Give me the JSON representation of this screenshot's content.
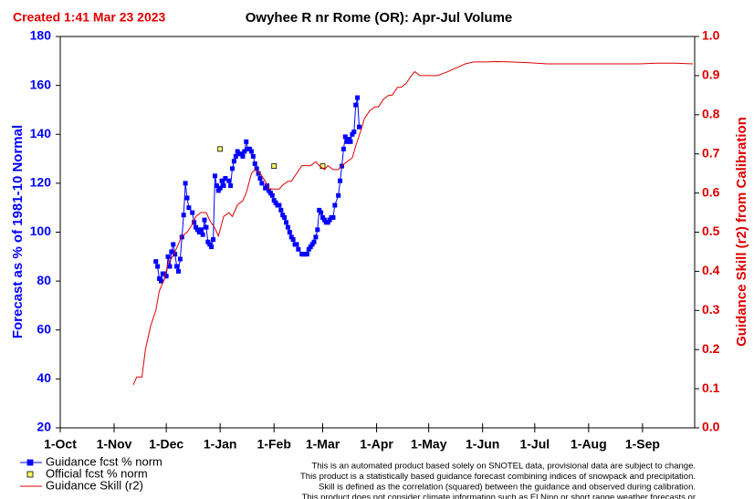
{
  "chart_data": {
    "type": "line",
    "created": "Created 1:41 Mar 23 2023",
    "title": "Owyhee R nr Rome (OR): Apr-Jul Volume",
    "y_label": "Forecast as % of 1981-10 Normal",
    "y2_label": "Guidance Skill (r2) from Calibration",
    "xlim": [
      0,
      365
    ],
    "xticks": [
      {
        "value": 0,
        "label": "1-Oct"
      },
      {
        "value": 31,
        "label": "1-Nov"
      },
      {
        "value": 61,
        "label": "1-Dec"
      },
      {
        "value": 92,
        "label": "1-Jan"
      },
      {
        "value": 123,
        "label": "1-Feb"
      },
      {
        "value": 151,
        "label": "1-Mar"
      },
      {
        "value": 182,
        "label": "1-Apr"
      },
      {
        "value": 212,
        "label": "1-May"
      },
      {
        "value": 243,
        "label": "1-Jun"
      },
      {
        "value": 273,
        "label": "1-Jul"
      },
      {
        "value": 304,
        "label": "1-Aug"
      },
      {
        "value": 335,
        "label": "1-Sep"
      }
    ],
    "ylim": [
      20,
      180
    ],
    "yticks": [
      20,
      40,
      60,
      80,
      100,
      120,
      140,
      160,
      180
    ],
    "y2lim": [
      0,
      1
    ],
    "y2ticks": [
      {
        "value": 0,
        "label": "0.0"
      },
      0.1,
      0.2,
      0.3,
      0.4,
      0.5,
      0.6,
      0.7,
      0.8,
      0.9,
      {
        "value": 1,
        "label": "1.0"
      }
    ],
    "grid": false,
    "series": [
      {
        "name": "Guidance fcst % norm",
        "color": "#0000ff",
        "marker": "square",
        "x": [
          55,
          56,
          57,
          58,
          59,
          60,
          61,
          62,
          63,
          64,
          65,
          66,
          67,
          68,
          69,
          70,
          71,
          72,
          73,
          74,
          76,
          77,
          78,
          79,
          80,
          81,
          82,
          83,
          84,
          85,
          86,
          87,
          88,
          89,
          90,
          91,
          92,
          93,
          94,
          95,
          97,
          98,
          99,
          100,
          101,
          102,
          103,
          104,
          105,
          106,
          107,
          108,
          109,
          110,
          111,
          112,
          113,
          114,
          115,
          116,
          118,
          119,
          120,
          121,
          122,
          123,
          124,
          125,
          126,
          127,
          128,
          129,
          130,
          131,
          132,
          133,
          134,
          135,
          136,
          137,
          139,
          140,
          141,
          142,
          143,
          144,
          145,
          146,
          147,
          148,
          149,
          150,
          151,
          152,
          153,
          154,
          155,
          156,
          157,
          158,
          160,
          161,
          162,
          163,
          164,
          165,
          166,
          167,
          168,
          169,
          170,
          171,
          172
        ],
        "values": [
          88,
          86,
          81,
          80,
          83,
          83,
          82,
          90,
          86,
          92,
          95,
          91,
          86,
          84,
          89,
          98,
          107,
          120,
          114,
          110,
          108,
          104,
          102,
          101,
          100,
          101,
          99,
          105,
          102,
          96,
          95,
          94,
          97,
          123,
          119,
          117,
          118,
          121,
          119,
          122,
          121,
          119,
          126,
          129,
          131,
          133,
          132,
          132,
          131,
          133,
          137,
          134,
          134,
          133,
          131,
          128,
          126,
          124,
          122,
          120,
          118,
          119,
          117,
          116,
          115,
          113,
          112,
          111,
          111,
          109,
          107,
          106,
          104,
          102,
          100,
          98,
          97,
          95,
          95,
          93,
          91,
          91,
          91,
          91,
          93,
          94,
          95,
          96,
          98,
          101,
          109,
          108,
          106,
          105,
          104,
          104,
          105,
          106,
          106,
          111,
          115,
          121,
          127,
          134,
          139,
          137,
          138,
          137,
          140,
          141,
          152,
          155,
          143
        ]
      },
      {
        "name": "Official fcst % norm",
        "color": "#ffff66",
        "marker": "square",
        "x": [
          92,
          123,
          151
        ],
        "values": [
          134,
          127,
          127
        ]
      },
      {
        "name": "Guidance Skill (r2)",
        "color": "#dd0000",
        "axis": "y2",
        "x": [
          42,
          44,
          47,
          49,
          52,
          55,
          57,
          60,
          62,
          65,
          68,
          70,
          73,
          76,
          78,
          81,
          84,
          86,
          89,
          91,
          94,
          97,
          99,
          102,
          105,
          107,
          110,
          112,
          115,
          118,
          120,
          123,
          126,
          128,
          131,
          133,
          136,
          139,
          141,
          144,
          147,
          149,
          152,
          154,
          157,
          160,
          162,
          165,
          168,
          170,
          173,
          175,
          178,
          181,
          183,
          186,
          189,
          191,
          194,
          196,
          199,
          202,
          204,
          207,
          212,
          217,
          223,
          228,
          233,
          238,
          244,
          252,
          259,
          270,
          280,
          291,
          301,
          312,
          322,
          333,
          343,
          354,
          364
        ],
        "values": [
          0.11,
          0.13,
          0.13,
          0.2,
          0.26,
          0.3,
          0.35,
          0.38,
          0.42,
          0.44,
          0.47,
          0.49,
          0.5,
          0.52,
          0.54,
          0.55,
          0.55,
          0.53,
          0.51,
          0.49,
          0.54,
          0.55,
          0.54,
          0.57,
          0.58,
          0.6,
          0.65,
          0.66,
          0.65,
          0.63,
          0.61,
          0.61,
          0.61,
          0.62,
          0.63,
          0.63,
          0.65,
          0.67,
          0.67,
          0.67,
          0.68,
          0.67,
          0.66,
          0.67,
          0.66,
          0.66,
          0.67,
          0.68,
          0.69,
          0.72,
          0.76,
          0.79,
          0.81,
          0.82,
          0.82,
          0.84,
          0.85,
          0.85,
          0.87,
          0.87,
          0.88,
          0.9,
          0.91,
          0.9,
          0.9,
          0.9,
          0.91,
          0.92,
          0.93,
          0.935,
          0.935,
          0.936,
          0.935,
          0.933,
          0.93,
          0.93,
          0.93,
          0.93,
          0.93,
          0.93,
          0.932,
          0.932,
          0.93
        ]
      }
    ],
    "notes": [
      "This is an automated product based solely on SNOTEL data, provisional data are subject to change.",
      "This product is a statistically based guidance forecast combining indices of snowpack and precipitation.",
      "Skill is defined as the correlation (squared) between the guidance and observed during calibration.",
      "This product does not consider climate information such as El Nino or short range weather forecasts or"
    ]
  }
}
